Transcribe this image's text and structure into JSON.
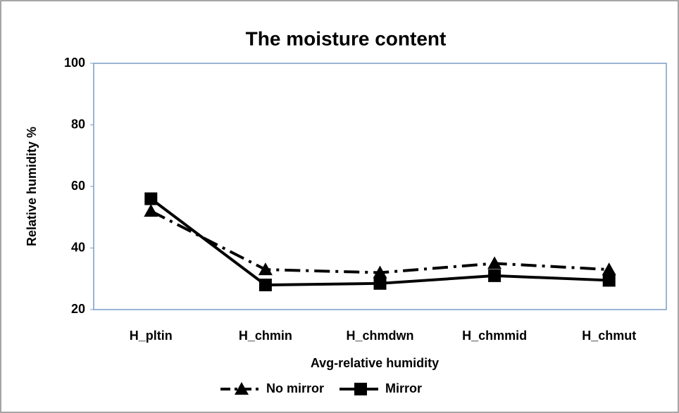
{
  "chart_data": {
    "type": "line",
    "title": "The moisture content",
    "x_label": "Avg-relative  humidity",
    "y_label": "Relative humidity %",
    "categories": [
      "H_pltin",
      "H_chmin",
      "H_chmdwn",
      "H_chmmid",
      "H_chmut"
    ],
    "series": [
      {
        "name": "No mirror",
        "color": "#000000",
        "marker": "triangle",
        "dash": true,
        "values": [
          52,
          33,
          32,
          35,
          33
        ]
      },
      {
        "name": "Mirror",
        "color": "#000000",
        "marker": "square",
        "dash": false,
        "values": [
          56,
          28,
          28.5,
          31,
          29.5
        ]
      }
    ],
    "ylim": [
      20,
      100
    ],
    "yticks": [
      20,
      40,
      60,
      80,
      100
    ],
    "grid": false,
    "legend": "bottom"
  }
}
